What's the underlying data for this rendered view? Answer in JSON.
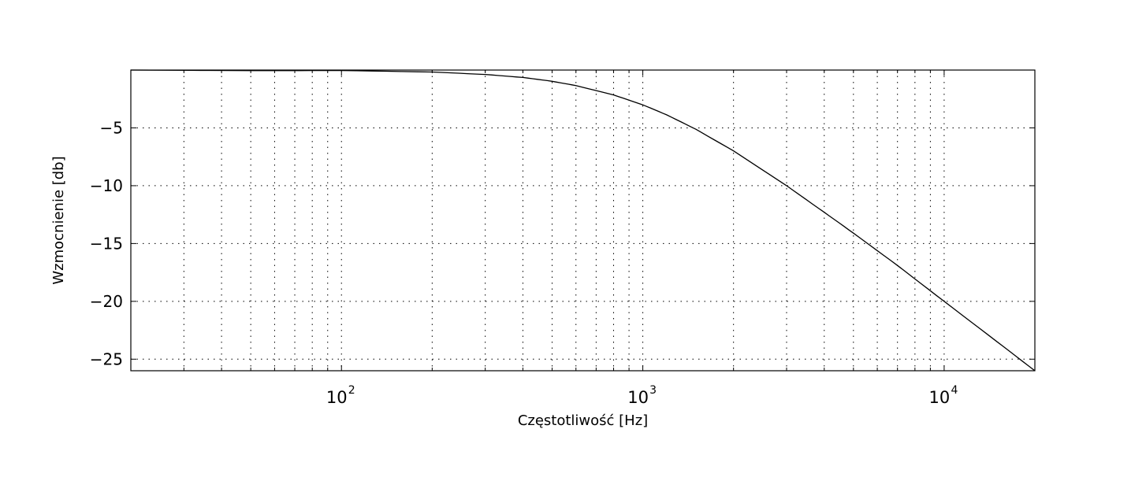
{
  "chart_data": {
    "type": "line",
    "title": "",
    "xlabel": "Częstotliwość [Hz]",
    "ylabel": "Wzmocnienie [db]",
    "xscale": "log",
    "xlim": [
      20,
      20000
    ],
    "ylim": [
      -26,
      0
    ],
    "grid": true,
    "grid_style": "dotted",
    "line_color": "#000000",
    "x_ticks": [
      {
        "value": 100,
        "base": "10",
        "exp": "2"
      },
      {
        "value": 1000,
        "base": "10",
        "exp": "3"
      },
      {
        "value": 10000,
        "base": "10",
        "exp": "4"
      }
    ],
    "y_ticks": [
      {
        "value": -5,
        "label": "−5"
      },
      {
        "value": -10,
        "label": "−10"
      },
      {
        "value": -15,
        "label": "−15"
      },
      {
        "value": -20,
        "label": "−20"
      },
      {
        "value": -25,
        "label": "−25"
      }
    ],
    "series": [
      {
        "x": [
          20,
          50,
          100,
          200,
          300,
          400,
          500,
          600,
          800,
          1000,
          1200,
          1500,
          2000,
          3000,
          4000,
          5000,
          7000,
          10000,
          15000,
          20000
        ],
        "y": [
          0,
          -0.05,
          -0.04,
          -0.17,
          -0.38,
          -0.64,
          -0.97,
          -1.34,
          -2.15,
          -3.01,
          -3.87,
          -5.12,
          -6.99,
          -10.0,
          -12.3,
          -14.1,
          -16.9,
          -20.0,
          -23.5,
          -26.0
        ]
      }
    ]
  }
}
